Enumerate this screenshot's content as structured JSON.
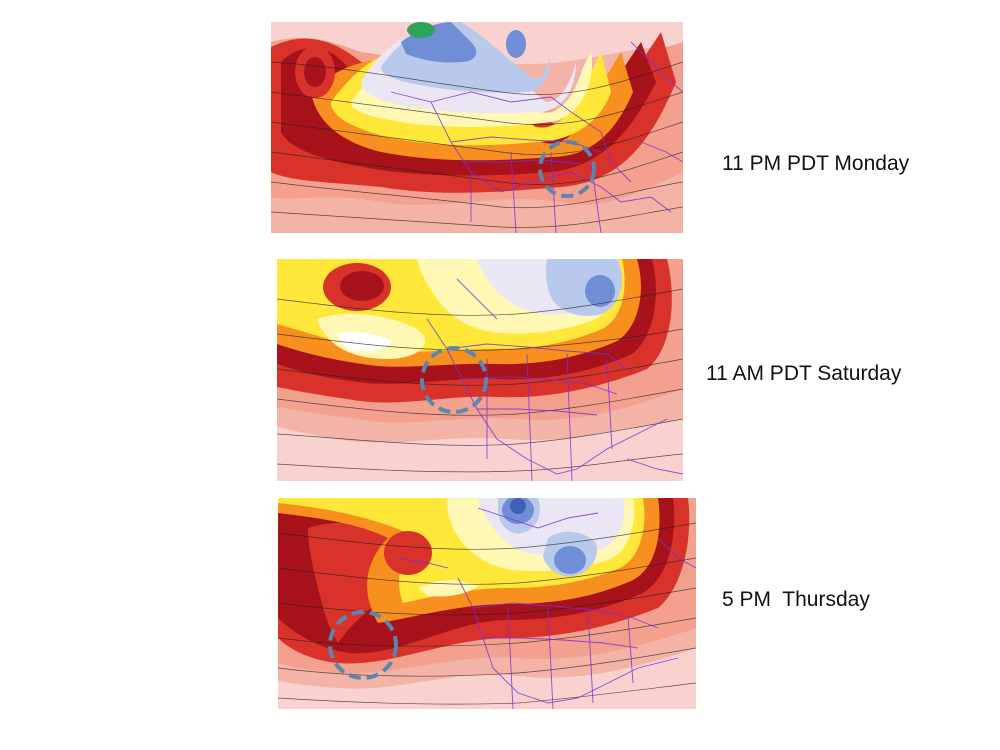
{
  "panels": [
    {
      "caption": "11 PM PDT Monday"
    },
    {
      "caption": "11 AM PDT Saturday"
    },
    {
      "caption": "5 PM  Thursday"
    }
  ],
  "colors": {
    "background": "#ffffff",
    "pale_pink": "#f9d2cf",
    "salmon": "#f3a08f",
    "red": "#d9322a",
    "dark_red": "#a8131b",
    "orange": "#f7901e",
    "yellow": "#ffe83a",
    "pale_yellow": "#fff8b5",
    "lavender": "#eae6f4",
    "light_blue": "#b9c9ec",
    "blue": "#6f8ed6",
    "green": "#2fa35a",
    "coastline": "#7a2fd6",
    "circle": "#5b86b0"
  }
}
